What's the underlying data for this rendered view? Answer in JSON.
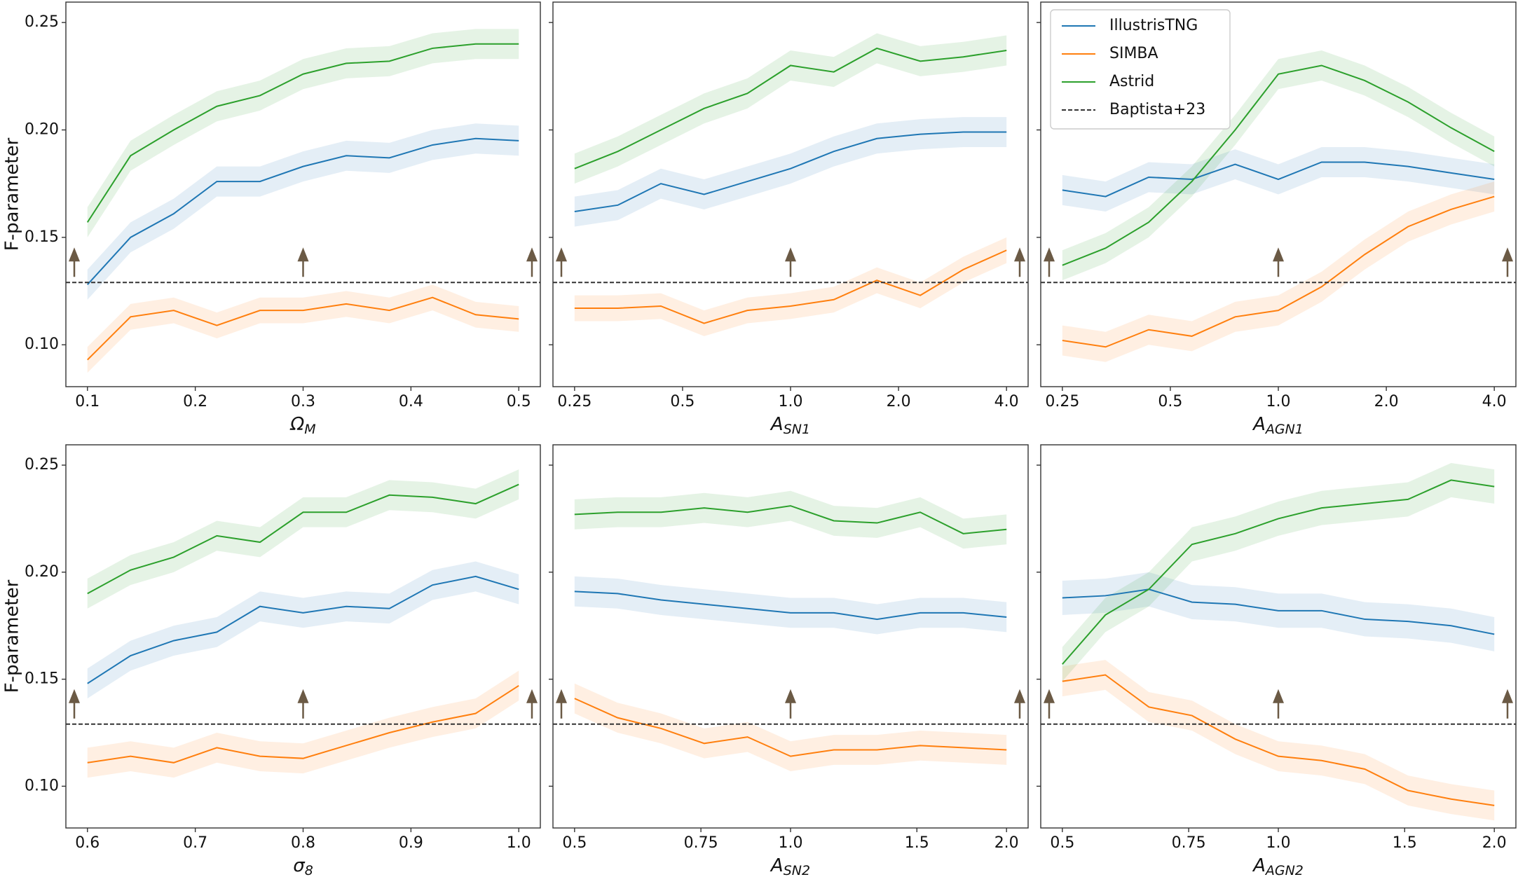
{
  "chart_data": [
    {
      "type": "line",
      "xlabel": [
        "Ω",
        "M"
      ],
      "ylabel": "F-parameter",
      "ytick_labels": true,
      "xscale": "linear",
      "x": [
        0.1,
        0.14,
        0.18,
        0.22,
        0.26,
        0.3,
        0.34,
        0.38,
        0.42,
        0.46,
        0.5
      ],
      "xlim": [
        0.08,
        0.52
      ],
      "xticks": [
        0.1,
        0.2,
        0.3,
        0.4,
        0.5
      ],
      "ylim": [
        0.0805,
        0.2595
      ],
      "yticks": [
        {
          "value": 0.1,
          "label": "0.10"
        },
        0.15,
        {
          "value": 0.2,
          "label": "0.20"
        },
        0.25
      ],
      "series": [
        {
          "color": "#1f77b4",
          "error": 0.007,
          "values": [
            0.128,
            0.15,
            0.161,
            0.176,
            0.176,
            0.183,
            0.188,
            0.187,
            0.193,
            0.196,
            0.195
          ]
        },
        {
          "color": "#ff7f0e",
          "error": 0.006,
          "values": [
            0.093,
            0.113,
            0.116,
            0.109,
            0.116,
            0.116,
            0.119,
            0.116,
            0.122,
            0.114,
            0.112
          ]
        },
        {
          "color": "#2ca02c",
          "error": 0.007,
          "values": [
            0.157,
            0.188,
            0.2,
            0.211,
            0.216,
            0.226,
            0.231,
            0.232,
            0.238,
            0.24,
            0.24
          ]
        }
      ],
      "reference": {
        "value": 0.129,
        "color": "#333333"
      }
    },
    {
      "type": "line",
      "xlabel": [
        "A",
        "SN1"
      ],
      "ytick_labels": false,
      "xscale": "log",
      "x": [
        0.25,
        0.33,
        0.435,
        0.574,
        0.758,
        1.0,
        1.32,
        1.74,
        2.3,
        3.03,
        4.0
      ],
      "xlim": [
        0.2176,
        4.595
      ],
      "xticks": [
        0.25,
        0.5,
        {
          "value": 1,
          "label": "1.0"
        },
        {
          "value": 2,
          "label": "2.0"
        },
        {
          "value": 4,
          "label": "4.0"
        }
      ],
      "ylim": [
        0.0805,
        0.2595
      ],
      "yticks": [
        0.1,
        0.15,
        0.2,
        0.25
      ],
      "series": [
        {
          "color": "#1f77b4",
          "error": 0.007,
          "values": [
            0.162,
            0.165,
            0.175,
            0.17,
            0.176,
            0.182,
            0.19,
            0.196,
            0.198,
            0.199,
            0.199
          ]
        },
        {
          "color": "#ff7f0e",
          "error": 0.006,
          "values": [
            0.117,
            0.117,
            0.118,
            0.11,
            0.116,
            0.118,
            0.121,
            0.13,
            0.123,
            0.135,
            0.144
          ]
        },
        {
          "color": "#2ca02c",
          "error": 0.007,
          "values": [
            0.182,
            0.19,
            0.2,
            0.21,
            0.217,
            0.23,
            0.227,
            0.238,
            0.232,
            0.234,
            0.237
          ]
        }
      ],
      "reference": {
        "value": 0.129,
        "color": "#333333"
      }
    },
    {
      "type": "line",
      "xlabel": [
        "A",
        "AGN1"
      ],
      "ytick_labels": false,
      "xscale": "log",
      "legend": "upper left",
      "x": [
        0.25,
        0.33,
        0.435,
        0.574,
        0.758,
        1.0,
        1.32,
        1.74,
        2.3,
        3.03,
        4.0
      ],
      "xlim": [
        0.2176,
        4.595
      ],
      "xticks": [
        0.25,
        0.5,
        {
          "value": 1,
          "label": "1.0"
        },
        {
          "value": 2,
          "label": "2.0"
        },
        {
          "value": 4,
          "label": "4.0"
        }
      ],
      "ylim": [
        0.0805,
        0.2595
      ],
      "yticks": [
        0.1,
        0.15,
        0.2,
        0.25
      ],
      "series": [
        {
          "name": "IllustrisTNG",
          "color": "#1f77b4",
          "error": 0.007,
          "values": [
            0.172,
            0.169,
            0.178,
            0.177,
            0.184,
            0.177,
            0.185,
            0.185,
            0.183,
            0.18,
            0.177
          ]
        },
        {
          "name": "SIMBA",
          "color": "#ff7f0e",
          "error": 0.007,
          "values": [
            0.102,
            0.099,
            0.107,
            0.104,
            0.113,
            0.116,
            0.127,
            0.142,
            0.155,
            0.163,
            0.169
          ]
        },
        {
          "name": "Astrid",
          "color": "#2ca02c",
          "error": 0.007,
          "values": [
            0.137,
            0.145,
            0.157,
            0.176,
            0.2,
            0.226,
            0.23,
            0.223,
            0.213,
            0.201,
            0.19
          ]
        }
      ],
      "reference": {
        "name": "Baptista+23",
        "value": 0.129,
        "color": "#333333"
      }
    },
    {
      "type": "line",
      "xlabel": [
        "σ",
        "8"
      ],
      "ylabel": "F-parameter",
      "ytick_labels": true,
      "xscale": "linear",
      "x": [
        0.6,
        0.64,
        0.68,
        0.72,
        0.76,
        0.8,
        0.84,
        0.88,
        0.92,
        0.96,
        1.0
      ],
      "xlim": [
        0.58,
        1.02
      ],
      "xticks": [
        0.6,
        0.7,
        0.8,
        0.9,
        {
          "value": 1,
          "label": "1.0"
        }
      ],
      "ylim": [
        0.0805,
        0.2595
      ],
      "yticks": [
        {
          "value": 0.1,
          "label": "0.10"
        },
        0.15,
        {
          "value": 0.2,
          "label": "0.20"
        },
        0.25
      ],
      "series": [
        {
          "color": "#1f77b4",
          "error": 0.007,
          "values": [
            0.148,
            0.161,
            0.168,
            0.172,
            0.184,
            0.181,
            0.184,
            0.183,
            0.194,
            0.198,
            0.192
          ]
        },
        {
          "color": "#ff7f0e",
          "error": 0.007,
          "values": [
            0.111,
            0.114,
            0.111,
            0.118,
            0.114,
            0.113,
            0.119,
            0.125,
            0.13,
            0.134,
            0.147
          ]
        },
        {
          "color": "#2ca02c",
          "error": 0.007,
          "values": [
            0.19,
            0.201,
            0.207,
            0.217,
            0.214,
            0.228,
            0.228,
            0.236,
            0.235,
            0.232,
            0.241
          ]
        }
      ],
      "reference": {
        "value": 0.129,
        "color": "#333333"
      }
    },
    {
      "type": "line",
      "xlabel": [
        "A",
        "SN2"
      ],
      "ytick_labels": false,
      "xscale": "log",
      "x": [
        0.5,
        0.574,
        0.66,
        0.758,
        0.871,
        1.0,
        1.149,
        1.32,
        1.516,
        1.741,
        2.0
      ],
      "xlim": [
        0.4665,
        2.1435
      ],
      "xticks": [
        0.5,
        0.75,
        {
          "value": 1,
          "label": "1.0"
        },
        1.5,
        {
          "value": 2,
          "label": "2.0"
        }
      ],
      "ylim": [
        0.0805,
        0.2595
      ],
      "yticks": [
        0.1,
        0.15,
        0.2,
        0.25
      ],
      "series": [
        {
          "color": "#1f77b4",
          "error": 0.007,
          "values": [
            0.191,
            0.19,
            0.187,
            0.185,
            0.183,
            0.181,
            0.181,
            0.178,
            0.181,
            0.181,
            0.179
          ]
        },
        {
          "color": "#ff7f0e",
          "error": 0.007,
          "values": [
            0.141,
            0.132,
            0.127,
            0.12,
            0.123,
            0.114,
            0.117,
            0.117,
            0.119,
            0.118,
            0.117
          ]
        },
        {
          "color": "#2ca02c",
          "error": 0.007,
          "values": [
            0.227,
            0.228,
            0.228,
            0.23,
            0.228,
            0.231,
            0.224,
            0.223,
            0.228,
            0.218,
            0.22
          ]
        }
      ],
      "reference": {
        "value": 0.129,
        "color": "#333333"
      }
    },
    {
      "type": "line",
      "xlabel": [
        "A",
        "AGN2"
      ],
      "ytick_labels": false,
      "xscale": "log",
      "x": [
        0.5,
        0.574,
        0.66,
        0.758,
        0.871,
        1.0,
        1.149,
        1.32,
        1.516,
        1.741,
        2.0
      ],
      "xlim": [
        0.4665,
        2.1435
      ],
      "xticks": [
        0.5,
        0.75,
        {
          "value": 1,
          "label": "1.0"
        },
        1.5,
        {
          "value": 2,
          "label": "2.0"
        }
      ],
      "ylim": [
        0.0805,
        0.2595
      ],
      "yticks": [
        0.1,
        0.15,
        0.2,
        0.25
      ],
      "series": [
        {
          "color": "#1f77b4",
          "error": 0.008,
          "values": [
            0.188,
            0.189,
            0.192,
            0.186,
            0.185,
            0.182,
            0.182,
            0.178,
            0.177,
            0.175,
            0.171
          ]
        },
        {
          "color": "#ff7f0e",
          "error": 0.007,
          "values": [
            0.149,
            0.152,
            0.137,
            0.133,
            0.122,
            0.114,
            0.112,
            0.108,
            0.098,
            0.094,
            0.091
          ]
        },
        {
          "color": "#2ca02c",
          "error": 0.008,
          "values": [
            0.157,
            0.18,
            0.192,
            0.213,
            0.218,
            0.225,
            0.23,
            0.232,
            0.234,
            0.243,
            0.24
          ]
        }
      ],
      "reference": {
        "value": 0.129,
        "color": "#333333"
      }
    }
  ]
}
